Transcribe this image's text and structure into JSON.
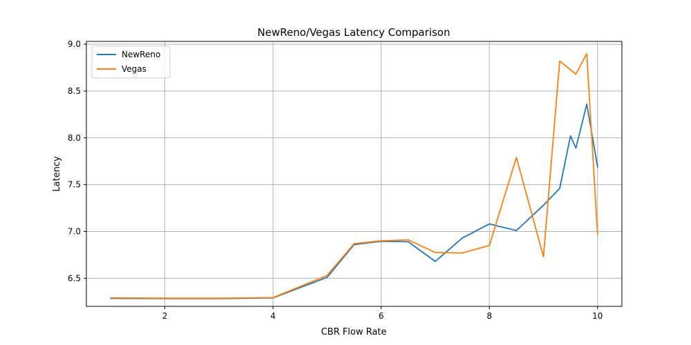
{
  "chart_data": {
    "type": "line",
    "title": "NewReno/Vegas Latency Comparison",
    "xlabel": "CBR Flow Rate",
    "ylabel": "Latency",
    "xlim": [
      0.55,
      10.45
    ],
    "ylim": [
      6.2,
      9.03
    ],
    "xticks": [
      2,
      4,
      6,
      8,
      10
    ],
    "xtick_labels": [
      "2",
      "4",
      "6",
      "8",
      "10"
    ],
    "yticks": [
      6.5,
      7.0,
      7.5,
      8.0,
      8.5,
      9.0
    ],
    "ytick_labels": [
      "6.5",
      "7.0",
      "7.5",
      "8.0",
      "8.5",
      "9.0"
    ],
    "grid": true,
    "legend_position": "top-left",
    "series": [
      {
        "name": "NewReno",
        "color": "#1f77b4",
        "x": [
          1,
          2,
          3,
          4,
          5,
          5.5,
          6,
          6.5,
          7,
          7.5,
          8,
          8.5,
          9,
          9.3,
          9.5,
          9.6,
          9.8,
          10
        ],
        "y": [
          6.285,
          6.283,
          6.283,
          6.29,
          6.51,
          6.86,
          6.895,
          6.89,
          6.68,
          6.93,
          7.08,
          7.01,
          7.28,
          7.46,
          8.02,
          7.89,
          8.36,
          7.69
        ]
      },
      {
        "name": "Vegas",
        "color": "#ff7f0e",
        "x": [
          1,
          2,
          3,
          4,
          5,
          5.5,
          6,
          6.5,
          7,
          7.5,
          8,
          8.5,
          9,
          9.3,
          9.6,
          9.8,
          10
        ],
        "y": [
          6.29,
          6.287,
          6.287,
          6.293,
          6.53,
          6.87,
          6.9,
          6.91,
          6.775,
          6.77,
          6.85,
          7.79,
          6.73,
          8.82,
          8.68,
          8.9,
          6.97
        ]
      }
    ]
  }
}
